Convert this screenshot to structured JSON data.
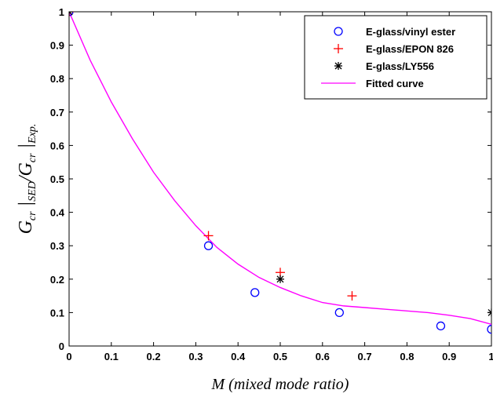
{
  "chart_data": {
    "type": "scatter",
    "xlabel": "M (mixed mode ratio)",
    "ylabel": {
      "g1": "G",
      "sub1": "cr",
      "sub2": "SED",
      "slash": "/",
      "g2": "G",
      "sub3": "cr",
      "sub4": "Exp."
    },
    "xlim": [
      0,
      1
    ],
    "ylim": [
      0,
      1
    ],
    "x_ticks": [
      "0",
      "0.1",
      "0.2",
      "0.3",
      "0.4",
      "0.5",
      "0.6",
      "0.7",
      "0.8",
      "0.9",
      "1"
    ],
    "y_ticks": [
      "0",
      "0.1",
      "0.2",
      "0.3",
      "0.4",
      "0.5",
      "0.6",
      "0.7",
      "0.8",
      "0.9",
      "1"
    ],
    "grid": false,
    "legend_position": "top-right",
    "series": [
      {
        "name": "E-glass/vinyl ester",
        "marker": "circle",
        "color": "#0000ff",
        "points": [
          [
            0,
            1
          ],
          [
            0.33,
            0.3
          ],
          [
            0.44,
            0.16
          ],
          [
            0.64,
            0.1
          ],
          [
            0.88,
            0.06
          ],
          [
            1.0,
            0.05
          ]
        ]
      },
      {
        "name": "E-glass/EPON 826",
        "marker": "plus",
        "color": "#ff0000",
        "points": [
          [
            0,
            1
          ],
          [
            0.33,
            0.33
          ],
          [
            0.5,
            0.22
          ],
          [
            0.67,
            0.15
          ]
        ]
      },
      {
        "name": "E-glass/LY556",
        "marker": "asterisk",
        "color": "#000000",
        "points": [
          [
            0,
            1
          ],
          [
            0.5,
            0.2
          ],
          [
            1.0,
            0.1
          ]
        ]
      },
      {
        "name": "Fitted curve",
        "marker": "line",
        "color": "#ff00ff",
        "points": [
          [
            0,
            1
          ],
          [
            0.05,
            0.855
          ],
          [
            0.1,
            0.73
          ],
          [
            0.15,
            0.62
          ],
          [
            0.2,
            0.52
          ],
          [
            0.25,
            0.435
          ],
          [
            0.3,
            0.36
          ],
          [
            0.35,
            0.295
          ],
          [
            0.4,
            0.245
          ],
          [
            0.45,
            0.205
          ],
          [
            0.5,
            0.175
          ],
          [
            0.55,
            0.15
          ],
          [
            0.6,
            0.13
          ],
          [
            0.65,
            0.12
          ],
          [
            0.7,
            0.115
          ],
          [
            0.75,
            0.11
          ],
          [
            0.8,
            0.105
          ],
          [
            0.85,
            0.1
          ],
          [
            0.9,
            0.092
          ],
          [
            0.95,
            0.082
          ],
          [
            1.0,
            0.065
          ]
        ]
      }
    ]
  }
}
